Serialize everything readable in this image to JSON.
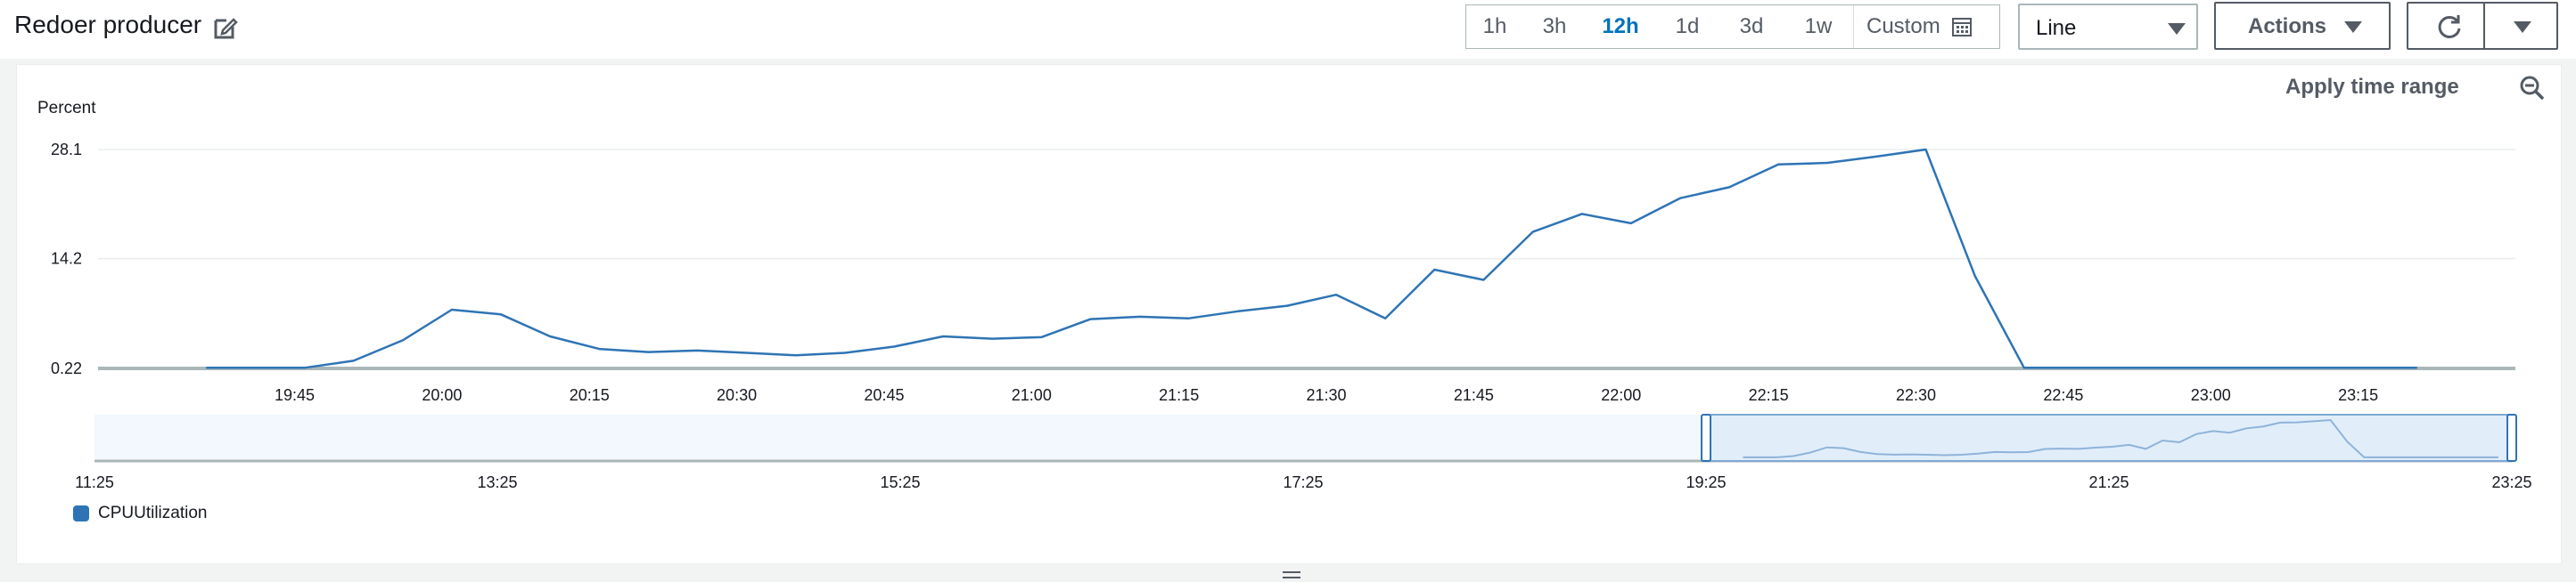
{
  "header": {
    "title": "Redoer producer",
    "ranges": [
      "1h",
      "3h",
      "12h",
      "1d",
      "3d",
      "1w"
    ],
    "active_range": "12h",
    "custom_label": "Custom",
    "view_select": "Line",
    "actions_label": "Actions"
  },
  "panel": {
    "apply_time_range": "Apply time range",
    "ylabel": "Percent"
  },
  "chart_data": {
    "type": "line",
    "ylabel": "Percent",
    "yticks": [
      "28.1",
      "14.2",
      "0.22"
    ],
    "ylim": [
      0.22,
      28.1
    ],
    "xticks": [
      "19:45",
      "20:00",
      "20:15",
      "20:30",
      "20:45",
      "21:00",
      "21:15",
      "21:30",
      "21:45",
      "22:00",
      "22:15",
      "22:30",
      "22:45",
      "23:00",
      "23:15"
    ],
    "series": [
      {
        "name": "CPUUtilization",
        "color": "#2e74b5",
        "x": [
          "19:36",
          "19:41",
          "19:46",
          "19:51",
          "19:56",
          "20:01",
          "20:06",
          "20:11",
          "20:16",
          "20:21",
          "20:26",
          "20:31",
          "20:36",
          "20:41",
          "20:46",
          "20:51",
          "20:56",
          "21:01",
          "21:06",
          "21:11",
          "21:16",
          "21:21",
          "21:26",
          "21:31",
          "21:36",
          "21:41",
          "21:46",
          "21:51",
          "21:56",
          "22:01",
          "22:06",
          "22:11",
          "22:16",
          "22:21",
          "22:26",
          "22:31",
          "22:36",
          "22:41",
          "22:46",
          "22:51",
          "22:56",
          "23:01",
          "23:06",
          "23:11",
          "23:16",
          "23:21"
        ],
        "values": [
          0.3,
          0.3,
          0.3,
          1.2,
          3.8,
          7.7,
          7.1,
          4.3,
          2.7,
          2.3,
          2.5,
          2.2,
          1.9,
          2.2,
          3.0,
          4.3,
          4.0,
          4.2,
          6.5,
          6.8,
          6.6,
          7.5,
          8.2,
          9.6,
          6.6,
          12.8,
          11.5,
          17.6,
          19.9,
          18.7,
          21.9,
          23.3,
          26.2,
          26.4,
          27.2,
          28.1,
          12.0,
          0.3,
          0.3,
          0.3,
          0.3,
          0.3,
          0.3,
          0.3,
          0.3,
          0.3
        ]
      }
    ],
    "overview": {
      "xticks": [
        "11:25",
        "13:25",
        "15:25",
        "17:25",
        "19:25",
        "21:25",
        "23:25"
      ]
    },
    "grid": true,
    "legend": "bottom-left"
  }
}
